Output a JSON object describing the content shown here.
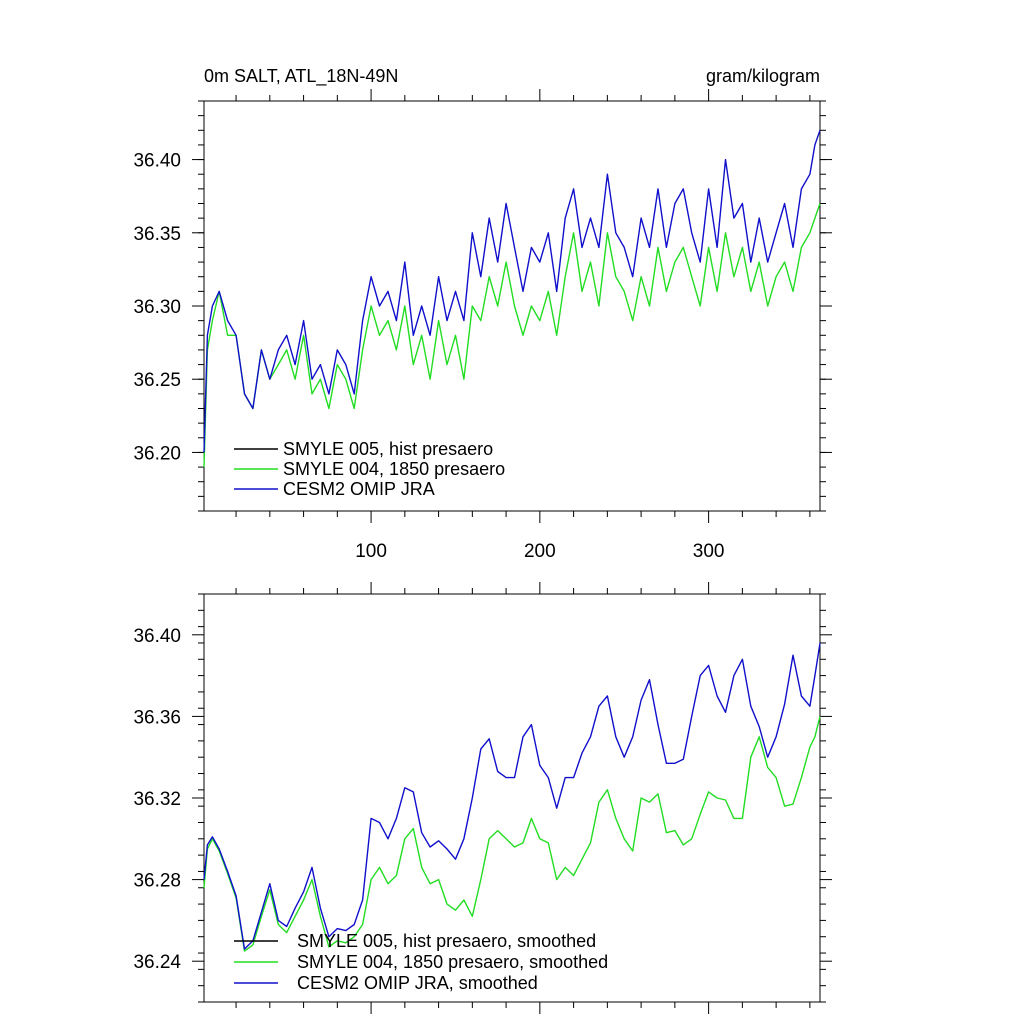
{
  "figure": {
    "title_left": "0m SALT, ATL_18N-49N",
    "title_right": "gram/kilogram"
  },
  "chart_data": [
    {
      "type": "line",
      "name": "daily",
      "title": "0m SALT, ATL_18N-49N",
      "units": "gram/kilogram",
      "xlabel": "",
      "ylabel": "",
      "xlim": [
        1,
        366
      ],
      "ylim": [
        36.16,
        36.44
      ],
      "xticks": [
        100,
        200,
        300
      ],
      "xtick_labels": [
        "100",
        "200",
        "300"
      ],
      "yticks": [
        36.2,
        36.25,
        36.3,
        36.35,
        36.4
      ],
      "ytick_labels": [
        "36.20",
        "36.25",
        "36.30",
        "36.35",
        "36.40"
      ],
      "legend_position": "bottom-left",
      "series": [
        {
          "name": "SMYLE 005, hist presaero",
          "color": "#000000",
          "visible": false,
          "x": [
            1,
            3,
            6,
            10,
            15,
            20,
            25,
            30,
            35,
            40,
            45,
            50,
            55,
            60,
            65,
            70,
            75,
            80,
            85,
            90,
            95,
            100,
            105,
            110,
            115,
            120,
            125,
            130,
            135,
            140,
            145,
            150,
            155,
            160,
            165,
            170,
            175,
            180,
            185,
            190,
            195,
            200,
            205,
            210,
            215,
            220,
            225,
            230,
            235,
            240,
            245,
            250,
            255,
            260,
            265,
            270,
            275,
            280,
            285,
            290,
            295,
            300,
            305,
            310,
            315,
            320,
            325,
            330,
            335,
            340,
            345,
            350,
            355,
            360,
            363,
            366
          ],
          "y": [
            36.19,
            36.27,
            36.29,
            36.31,
            36.28,
            36.28,
            36.24,
            36.23,
            36.27,
            36.25,
            36.26,
            36.27,
            36.25,
            36.28,
            36.24,
            36.25,
            36.23,
            36.26,
            36.25,
            36.23,
            36.27,
            36.3,
            36.28,
            36.29,
            36.27,
            36.3,
            36.26,
            36.28,
            36.25,
            36.29,
            36.26,
            36.28,
            36.25,
            36.3,
            36.29,
            36.32,
            36.3,
            36.33,
            36.3,
            36.28,
            36.3,
            36.29,
            36.31,
            36.28,
            36.32,
            36.35,
            36.31,
            36.33,
            36.3,
            36.35,
            36.32,
            36.31,
            36.29,
            36.32,
            36.3,
            36.34,
            36.31,
            36.33,
            36.34,
            36.32,
            36.3,
            36.34,
            36.31,
            36.35,
            36.32,
            36.34,
            36.31,
            36.33,
            36.3,
            36.32,
            36.33,
            36.31,
            36.34,
            36.35,
            36.36,
            36.37
          ]
        },
        {
          "name": "SMYLE 004, 1850 presaero",
          "color": "#22dd22",
          "visible": true,
          "x": [
            1,
            3,
            6,
            10,
            15,
            20,
            25,
            30,
            35,
            40,
            45,
            50,
            55,
            60,
            65,
            70,
            75,
            80,
            85,
            90,
            95,
            100,
            105,
            110,
            115,
            120,
            125,
            130,
            135,
            140,
            145,
            150,
            155,
            160,
            165,
            170,
            175,
            180,
            185,
            190,
            195,
            200,
            205,
            210,
            215,
            220,
            225,
            230,
            235,
            240,
            245,
            250,
            255,
            260,
            265,
            270,
            275,
            280,
            285,
            290,
            295,
            300,
            305,
            310,
            315,
            320,
            325,
            330,
            335,
            340,
            345,
            350,
            355,
            360,
            363,
            366
          ],
          "y": [
            36.19,
            36.27,
            36.29,
            36.31,
            36.28,
            36.28,
            36.24,
            36.23,
            36.27,
            36.25,
            36.26,
            36.27,
            36.25,
            36.28,
            36.24,
            36.25,
            36.23,
            36.26,
            36.25,
            36.23,
            36.27,
            36.3,
            36.28,
            36.29,
            36.27,
            36.3,
            36.26,
            36.28,
            36.25,
            36.29,
            36.26,
            36.28,
            36.25,
            36.3,
            36.29,
            36.32,
            36.3,
            36.33,
            36.3,
            36.28,
            36.3,
            36.29,
            36.31,
            36.28,
            36.32,
            36.35,
            36.31,
            36.33,
            36.3,
            36.35,
            36.32,
            36.31,
            36.29,
            36.32,
            36.3,
            36.34,
            36.31,
            36.33,
            36.34,
            36.32,
            36.3,
            36.34,
            36.31,
            36.35,
            36.32,
            36.34,
            36.31,
            36.33,
            36.3,
            36.32,
            36.33,
            36.31,
            36.34,
            36.35,
            36.36,
            36.37
          ]
        },
        {
          "name": "CESM2 OMIP JRA",
          "color": "#1010cc",
          "visible": true,
          "x": [
            1,
            3,
            6,
            10,
            15,
            20,
            25,
            30,
            35,
            40,
            45,
            50,
            55,
            60,
            65,
            70,
            75,
            80,
            85,
            90,
            95,
            100,
            105,
            110,
            115,
            120,
            125,
            130,
            135,
            140,
            145,
            150,
            155,
            160,
            165,
            170,
            175,
            180,
            185,
            190,
            195,
            200,
            205,
            210,
            215,
            220,
            225,
            230,
            235,
            240,
            245,
            250,
            255,
            260,
            265,
            270,
            275,
            280,
            285,
            290,
            295,
            300,
            305,
            310,
            315,
            320,
            325,
            330,
            335,
            340,
            345,
            350,
            355,
            360,
            363,
            366
          ],
          "y": [
            36.2,
            36.28,
            36.3,
            36.31,
            36.29,
            36.28,
            36.24,
            36.23,
            36.27,
            36.25,
            36.27,
            36.28,
            36.26,
            36.29,
            36.25,
            36.26,
            36.24,
            36.27,
            36.26,
            36.24,
            36.29,
            36.32,
            36.3,
            36.31,
            36.29,
            36.33,
            36.28,
            36.3,
            36.28,
            36.32,
            36.29,
            36.31,
            36.29,
            36.35,
            36.32,
            36.36,
            36.33,
            36.37,
            36.34,
            36.31,
            36.34,
            36.33,
            36.35,
            36.31,
            36.36,
            36.38,
            36.34,
            36.36,
            36.34,
            36.39,
            36.35,
            36.34,
            36.32,
            36.36,
            36.34,
            36.38,
            36.34,
            36.37,
            36.38,
            36.35,
            36.33,
            36.38,
            36.34,
            36.4,
            36.36,
            36.37,
            36.33,
            36.36,
            36.33,
            36.35,
            36.37,
            36.34,
            36.38,
            36.39,
            36.41,
            36.42
          ]
        }
      ]
    },
    {
      "type": "line",
      "name": "smoothed",
      "title": "",
      "xlabel": "",
      "ylabel": "",
      "xlim": [
        1,
        366
      ],
      "ylim": [
        36.22,
        36.42
      ],
      "xticks": [
        100,
        200,
        300
      ],
      "xtick_labels": [],
      "yticks": [
        36.24,
        36.28,
        36.32,
        36.36,
        36.4
      ],
      "ytick_labels": [
        "36.24",
        "36.28",
        "36.32",
        "36.36",
        "36.40"
      ],
      "legend_position": "bottom-left",
      "series": [
        {
          "name": "SMYLE 005, hist presaero, smoothed",
          "color": "#000000",
          "visible": false,
          "x": [
            1,
            3,
            6,
            10,
            15,
            20,
            25,
            30,
            35,
            40,
            45,
            50,
            55,
            60,
            65,
            70,
            75,
            80,
            85,
            90,
            95,
            100,
            105,
            110,
            115,
            120,
            125,
            130,
            135,
            140,
            145,
            150,
            155,
            160,
            165,
            170,
            175,
            180,
            185,
            190,
            195,
            200,
            205,
            210,
            215,
            220,
            225,
            230,
            235,
            240,
            245,
            250,
            255,
            260,
            265,
            270,
            275,
            280,
            285,
            290,
            295,
            300,
            305,
            310,
            315,
            320,
            325,
            330,
            335,
            340,
            345,
            350,
            355,
            360,
            363,
            366
          ],
          "y": [
            36.276,
            36.295,
            36.3,
            36.294,
            36.283,
            36.271,
            36.245,
            36.248,
            36.262,
            36.275,
            36.258,
            36.254,
            36.262,
            36.27,
            36.28,
            36.262,
            36.247,
            36.25,
            36.249,
            36.252,
            36.258,
            36.28,
            36.286,
            36.278,
            36.282,
            36.3,
            36.305,
            36.286,
            36.278,
            36.28,
            36.268,
            36.265,
            36.27,
            36.262,
            36.28,
            36.3,
            36.304,
            36.3,
            36.296,
            36.298,
            36.31,
            36.3,
            36.298,
            36.28,
            36.286,
            36.282,
            36.29,
            36.298,
            36.318,
            36.324,
            36.31,
            36.3,
            36.294,
            36.32,
            36.318,
            36.322,
            36.303,
            36.304,
            36.297,
            36.3,
            36.312,
            36.323,
            36.32,
            36.319,
            36.31,
            36.31,
            36.34,
            36.35,
            36.335,
            36.33,
            36.316,
            36.317,
            36.33,
            36.345,
            36.35,
            36.36
          ]
        },
        {
          "name": "SMYLE 004, 1850 presaero, smoothed",
          "color": "#22dd22",
          "visible": true,
          "x": [
            1,
            3,
            6,
            10,
            15,
            20,
            25,
            30,
            35,
            40,
            45,
            50,
            55,
            60,
            65,
            70,
            75,
            80,
            85,
            90,
            95,
            100,
            105,
            110,
            115,
            120,
            125,
            130,
            135,
            140,
            145,
            150,
            155,
            160,
            165,
            170,
            175,
            180,
            185,
            190,
            195,
            200,
            205,
            210,
            215,
            220,
            225,
            230,
            235,
            240,
            245,
            250,
            255,
            260,
            265,
            270,
            275,
            280,
            285,
            290,
            295,
            300,
            305,
            310,
            315,
            320,
            325,
            330,
            335,
            340,
            345,
            350,
            355,
            360,
            363,
            366
          ],
          "y": [
            36.276,
            36.295,
            36.3,
            36.294,
            36.283,
            36.271,
            36.245,
            36.248,
            36.262,
            36.275,
            36.258,
            36.254,
            36.262,
            36.27,
            36.28,
            36.262,
            36.247,
            36.25,
            36.249,
            36.252,
            36.258,
            36.28,
            36.286,
            36.278,
            36.282,
            36.3,
            36.305,
            36.286,
            36.278,
            36.28,
            36.268,
            36.265,
            36.27,
            36.262,
            36.28,
            36.3,
            36.304,
            36.3,
            36.296,
            36.298,
            36.31,
            36.3,
            36.298,
            36.28,
            36.286,
            36.282,
            36.29,
            36.298,
            36.318,
            36.324,
            36.31,
            36.3,
            36.294,
            36.32,
            36.318,
            36.322,
            36.303,
            36.304,
            36.297,
            36.3,
            36.312,
            36.323,
            36.32,
            36.319,
            36.31,
            36.31,
            36.34,
            36.35,
            36.335,
            36.33,
            36.316,
            36.317,
            36.33,
            36.345,
            36.35,
            36.36
          ]
        },
        {
          "name": "CESM2 OMIP JRA, smoothed",
          "color": "#1010cc",
          "visible": true,
          "x": [
            1,
            3,
            6,
            10,
            15,
            20,
            25,
            30,
            35,
            40,
            45,
            50,
            55,
            60,
            65,
            70,
            75,
            80,
            85,
            90,
            95,
            100,
            105,
            110,
            115,
            120,
            125,
            130,
            135,
            140,
            145,
            150,
            155,
            160,
            165,
            170,
            175,
            180,
            185,
            190,
            195,
            200,
            205,
            210,
            215,
            220,
            225,
            230,
            235,
            240,
            245,
            250,
            255,
            260,
            265,
            270,
            275,
            280,
            285,
            290,
            295,
            300,
            305,
            310,
            315,
            320,
            325,
            330,
            335,
            340,
            345,
            350,
            355,
            360,
            363,
            366
          ],
          "y": [
            36.28,
            36.297,
            36.301,
            36.295,
            36.284,
            36.272,
            36.246,
            36.25,
            36.264,
            36.278,
            36.26,
            36.257,
            36.266,
            36.274,
            36.286,
            36.266,
            36.252,
            36.256,
            36.255,
            36.258,
            36.27,
            36.31,
            36.308,
            36.3,
            36.31,
            36.325,
            36.323,
            36.303,
            36.296,
            36.299,
            36.295,
            36.29,
            36.3,
            36.32,
            36.344,
            36.349,
            36.333,
            36.33,
            36.33,
            36.35,
            36.356,
            36.336,
            36.33,
            36.315,
            36.33,
            36.33,
            36.342,
            36.35,
            36.365,
            36.37,
            36.35,
            36.34,
            36.35,
            36.368,
            36.378,
            36.356,
            36.337,
            36.337,
            36.339,
            36.36,
            36.38,
            36.385,
            36.37,
            36.362,
            36.38,
            36.388,
            36.365,
            36.355,
            36.34,
            36.35,
            36.366,
            36.39,
            36.37,
            36.365,
            36.38,
            36.396
          ]
        }
      ]
    }
  ]
}
